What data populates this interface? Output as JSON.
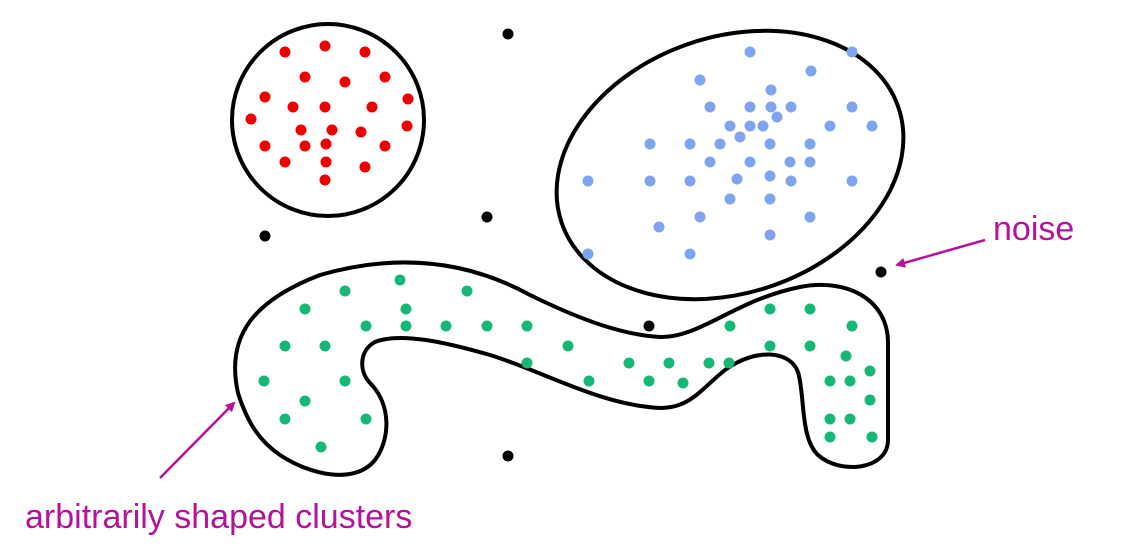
{
  "annotations": {
    "noise_label": "noise",
    "clusters_label": "arbitrarily shaped clusters"
  },
  "colors": {
    "outline": "#000000",
    "red_cluster": "#ee0000",
    "blue_cluster": "#7fa5f0",
    "green_cluster": "#15b874",
    "noise_point": "#000000",
    "annotation": "#b5119c"
  }
}
